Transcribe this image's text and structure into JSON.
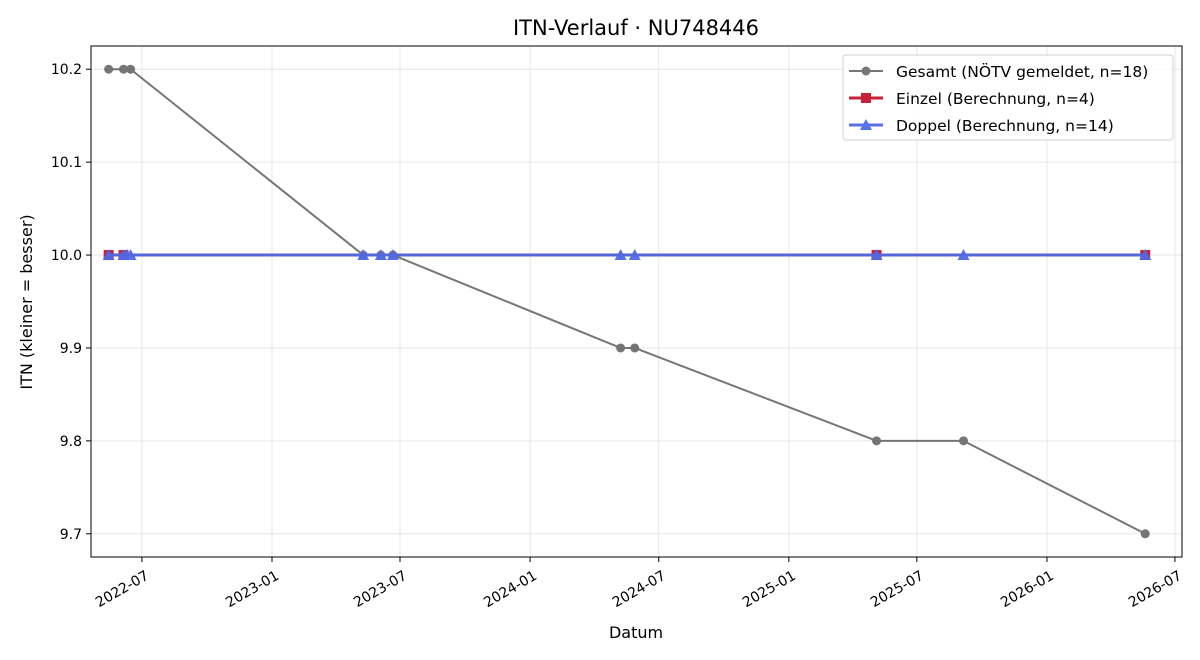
{
  "chart_data": {
    "type": "line",
    "title": "ITN-Verlauf · NU748446",
    "xlabel": "Datum",
    "ylabel": "ITN  (kleiner = besser)",
    "xlim": [
      "2022-04-20",
      "2026-07-11"
    ],
    "ylim": [
      9.675,
      10.225
    ],
    "x_ticks": [
      "2022-07",
      "2023-01",
      "2023-07",
      "2024-01",
      "2024-07",
      "2025-01",
      "2025-07",
      "2026-01",
      "2026-07"
    ],
    "y_ticks": [
      9.7,
      9.8,
      9.9,
      10.0,
      10.1,
      10.2
    ],
    "grid": true,
    "legend_position": "top-right",
    "series": [
      {
        "name": "Gesamt (NÖTV gemeldet, n=18)",
        "color": "#555555",
        "marker": "circle",
        "points": [
          {
            "x": "2022-05-15",
            "y": 10.2
          },
          {
            "x": "2022-06-05",
            "y": 10.2
          },
          {
            "x": "2022-06-15",
            "y": 10.2
          },
          {
            "x": "2023-05-10",
            "y": 10.0
          },
          {
            "x": "2023-06-04",
            "y": 10.0
          },
          {
            "x": "2023-06-21",
            "y": 10.0
          },
          {
            "x": "2024-05-08",
            "y": 9.9
          },
          {
            "x": "2024-05-28",
            "y": 9.9
          },
          {
            "x": "2025-05-05",
            "y": 9.8
          },
          {
            "x": "2025-09-05",
            "y": 9.8
          },
          {
            "x": "2026-05-20",
            "y": 9.7
          }
        ]
      },
      {
        "name": "Einzel (Berechnung, n=4)",
        "color": "#c8203a",
        "marker": "square",
        "points": [
          {
            "x": "2022-05-15",
            "y": 10.0
          },
          {
            "x": "2022-06-05",
            "y": 10.0
          },
          {
            "x": "2025-05-05",
            "y": 10.0
          },
          {
            "x": "2026-05-20",
            "y": 10.0
          }
        ]
      },
      {
        "name": "Doppel (Berechnung, n=14)",
        "color": "#4f6ae6",
        "marker": "triangle",
        "points": [
          {
            "x": "2022-05-15",
            "y": 10.0
          },
          {
            "x": "2022-06-05",
            "y": 10.0
          },
          {
            "x": "2022-06-10",
            "y": 10.0
          },
          {
            "x": "2022-06-15",
            "y": 10.0
          },
          {
            "x": "2023-05-10",
            "y": 10.0
          },
          {
            "x": "2023-06-04",
            "y": 10.0
          },
          {
            "x": "2023-06-21",
            "y": 10.0
          },
          {
            "x": "2024-05-08",
            "y": 10.0
          },
          {
            "x": "2024-05-28",
            "y": 10.0
          },
          {
            "x": "2025-05-05",
            "y": 10.0
          },
          {
            "x": "2025-09-05",
            "y": 10.0
          },
          {
            "x": "2026-05-20",
            "y": 10.0
          }
        ]
      }
    ]
  }
}
